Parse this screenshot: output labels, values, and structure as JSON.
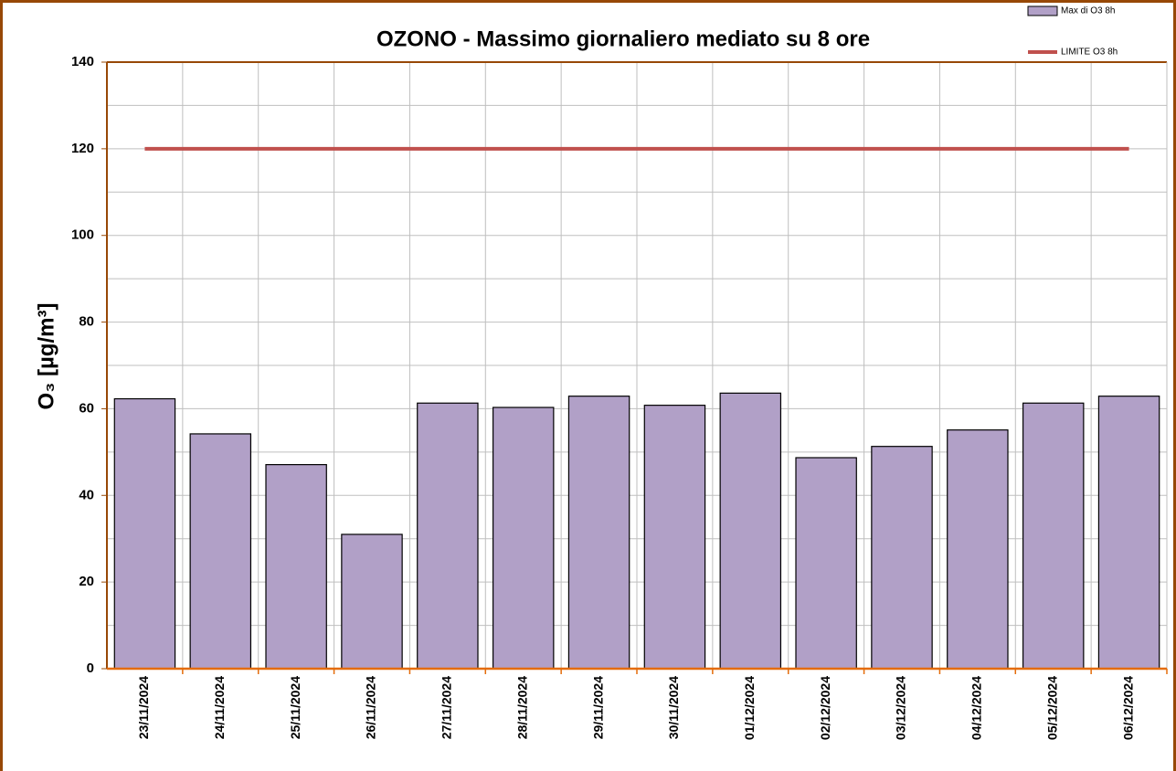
{
  "chart_data": {
    "type": "bar",
    "title": "OZONO - Massimo giornaliero mediato su 8 ore",
    "ylabel": "O₃ [µg/m³]",
    "categories": [
      "23/11/2024",
      "24/11/2024",
      "25/11/2024",
      "26/11/2024",
      "27/11/2024",
      "28/11/2024",
      "29/11/2024",
      "30/11/2024",
      "01/12/2024",
      "02/12/2024",
      "03/12/2024",
      "04/12/2024",
      "05/12/2024",
      "06/12/2024"
    ],
    "series": [
      {
        "name": "Max di O3 8h",
        "type": "bar",
        "color": "#b1a0c7",
        "values": [
          62.3,
          54.2,
          47.1,
          31,
          61.3,
          60.3,
          62.9,
          60.8,
          63.6,
          48.7,
          51.3,
          55.1,
          61.3,
          62.9
        ]
      },
      {
        "name": "LIMITE O3 8h",
        "type": "line",
        "color": "#c0504d",
        "values": [
          120,
          120,
          120,
          120,
          120,
          120,
          120,
          120,
          120,
          120,
          120,
          120,
          120,
          120
        ]
      }
    ],
    "ylim": [
      0,
      140
    ],
    "yticks": [
      0,
      20,
      40,
      60,
      80,
      100,
      120,
      140
    ],
    "yminorticks": [
      10,
      30,
      50,
      70,
      90,
      110,
      130
    ],
    "grid": true,
    "legend": "top-right"
  }
}
